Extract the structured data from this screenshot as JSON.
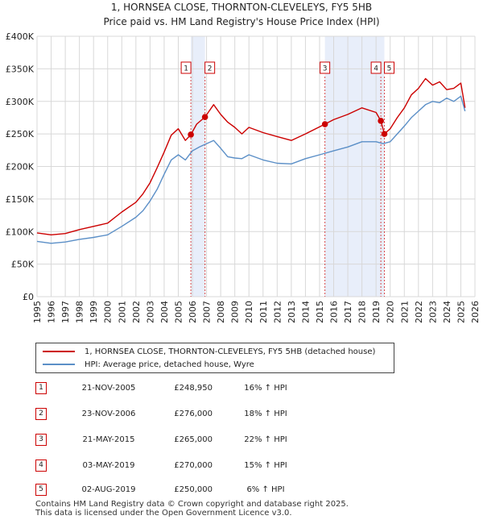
{
  "chart_data": {
    "type": "line",
    "title": "1, HORNSEA CLOSE, THORNTON-CLEVELEYS, FY5 5HB",
    "subtitle": "Price paid vs. HM Land Registry's House Price Index (HPI)",
    "xlabel": "",
    "ylabel": "",
    "xlim": [
      1995,
      2026
    ],
    "ylim": [
      0,
      400000
    ],
    "x_ticks": [
      "1995",
      "1996",
      "1997",
      "1998",
      "1999",
      "2000",
      "2001",
      "2002",
      "2003",
      "2004",
      "2005",
      "2006",
      "2007",
      "2008",
      "2009",
      "2010",
      "2011",
      "2012",
      "2013",
      "2014",
      "2015",
      "2016",
      "2017",
      "2018",
      "2019",
      "2020",
      "2021",
      "2022",
      "2023",
      "2024",
      "2025",
      "2026"
    ],
    "y_ticks": [
      {
        "value": 0,
        "label": "£0"
      },
      {
        "value": 50000,
        "label": "£50K"
      },
      {
        "value": 100000,
        "label": "£100K"
      },
      {
        "value": 150000,
        "label": "£150K"
      },
      {
        "value": 200000,
        "label": "£200K"
      },
      {
        "value": 250000,
        "label": "£250K"
      },
      {
        "value": 300000,
        "label": "£300K"
      },
      {
        "value": 350000,
        "label": "£350K"
      },
      {
        "value": 400000,
        "label": "£400K"
      }
    ],
    "grid": true,
    "shaded_periods": [
      [
        2005.89,
        2006.89
      ],
      [
        2015.38,
        2019.59
      ]
    ],
    "series": [
      {
        "name": "1, HORNSEA CLOSE, THORNTON-CLEVELEYS, FY5 5HB (detached house)",
        "color": "#cc0000",
        "x": [
          1995.0,
          1996.0,
          1997.0,
          1998.0,
          1999.0,
          2000.0,
          2001.0,
          2002.0,
          2002.5,
          2003.0,
          2003.5,
          2004.0,
          2004.5,
          2005.0,
          2005.5,
          2005.89,
          2006.3,
          2006.89,
          2007.5,
          2008.0,
          2008.5,
          2009.0,
          2009.5,
          2010.0,
          2011.0,
          2012.0,
          2013.0,
          2014.0,
          2015.38,
          2016.0,
          2017.0,
          2018.0,
          2019.0,
          2019.34,
          2019.59,
          2020.0,
          2020.5,
          2021.0,
          2021.5,
          2022.0,
          2022.5,
          2023.0,
          2023.5,
          2024.0,
          2024.5,
          2025.0,
          2025.3
        ],
        "values": [
          98000,
          95000,
          97000,
          103000,
          108000,
          113000,
          130000,
          145000,
          158000,
          175000,
          198000,
          222000,
          248000,
          258000,
          240000,
          248950,
          265000,
          276000,
          295000,
          280000,
          268000,
          260000,
          250000,
          260000,
          252000,
          246000,
          240000,
          250000,
          265000,
          272000,
          280000,
          290000,
          283000,
          270000,
          250000,
          258000,
          275000,
          290000,
          310000,
          320000,
          335000,
          325000,
          330000,
          318000,
          320000,
          328000,
          290000
        ]
      },
      {
        "name": "HPI: Average price, detached house, Wyre",
        "color": "#5b8fc7",
        "x": [
          1995.0,
          1996.0,
          1997.0,
          1998.0,
          1999.0,
          2000.0,
          2001.0,
          2002.0,
          2002.5,
          2003.0,
          2003.5,
          2004.0,
          2004.5,
          2005.0,
          2005.5,
          2006.0,
          2006.5,
          2007.0,
          2007.5,
          2008.0,
          2008.5,
          2009.0,
          2009.5,
          2010.0,
          2011.0,
          2012.0,
          2013.0,
          2014.0,
          2015.0,
          2016.0,
          2017.0,
          2018.0,
          2019.0,
          2019.5,
          2020.0,
          2020.5,
          2021.0,
          2021.5,
          2022.0,
          2022.5,
          2023.0,
          2023.5,
          2024.0,
          2024.5,
          2025.0,
          2025.3
        ],
        "values": [
          85000,
          82000,
          84000,
          88000,
          91000,
          95000,
          108000,
          122000,
          132000,
          147000,
          165000,
          188000,
          210000,
          218000,
          210000,
          224000,
          230000,
          235000,
          240000,
          228000,
          215000,
          213000,
          212000,
          218000,
          210000,
          205000,
          204000,
          212000,
          218000,
          224000,
          230000,
          238000,
          238000,
          235000,
          238000,
          250000,
          262000,
          275000,
          285000,
          295000,
          300000,
          298000,
          305000,
          300000,
          308000,
          285000
        ]
      }
    ],
    "markers": [
      {
        "id": "1",
        "x": 2005.89,
        "value": 248950
      },
      {
        "id": "2",
        "x": 2006.89,
        "value": 276000
      },
      {
        "id": "3",
        "x": 2015.38,
        "value": 265000
      },
      {
        "id": "4",
        "x": 2019.34,
        "value": 270000
      },
      {
        "id": "5",
        "x": 2019.59,
        "value": 250000
      }
    ],
    "box_labels": [
      "1",
      "2",
      "3",
      "4",
      "5"
    ]
  },
  "legend": {
    "property_label": "1, HORNSEA CLOSE, THORNTON-CLEVELEYS, FY5 5HB (detached house)",
    "hpi_label": "HPI: Average price, detached house, Wyre"
  },
  "transactions": [
    {
      "num": "1",
      "date": "21-NOV-2005",
      "price": "£248,950",
      "pct": "16% ↑ HPI"
    },
    {
      "num": "2",
      "date": "23-NOV-2006",
      "price": "£276,000",
      "pct": "18% ↑ HPI"
    },
    {
      "num": "3",
      "date": "21-MAY-2015",
      "price": "£265,000",
      "pct": "22% ↑ HPI"
    },
    {
      "num": "4",
      "date": "03-MAY-2019",
      "price": "£270,000",
      "pct": "15% ↑ HPI"
    },
    {
      "num": "5",
      "date": "02-AUG-2019",
      "price": "£250,000",
      "pct": "6% ↑ HPI"
    }
  ],
  "footer": {
    "line1": "Contains HM Land Registry data © Crown copyright and database right 2025.",
    "line2": "This data is licensed under the Open Government Licence v3.0."
  },
  "colors": {
    "property": "#cc0000",
    "hpi": "#5b8fc7",
    "shade": "#e8eefa",
    "grid": "#d8d8d8",
    "marker_box": "#cc0000"
  }
}
